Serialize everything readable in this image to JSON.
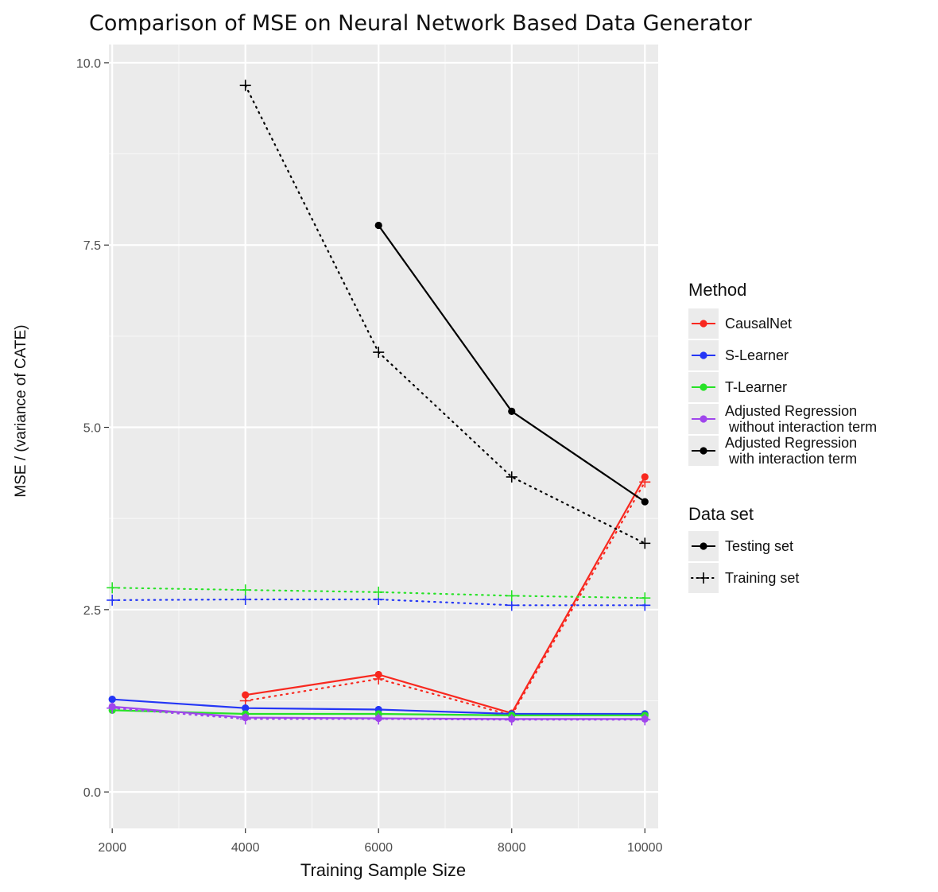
{
  "chart_data": {
    "type": "line",
    "title": "Comparison of MSE on Neural Network Based Data Generator",
    "xlabel": "Training Sample Size",
    "ylabel": "MSE / (variance of CATE)",
    "xlim": [
      1950,
      10200
    ],
    "ylim": [
      -0.5,
      10.25
    ],
    "xticks": [
      2000,
      4000,
      6000,
      8000,
      10000
    ],
    "xtick_labels": [
      "2000",
      "4000",
      "6000",
      "8000",
      "10000"
    ],
    "yticks": [
      0,
      2.5,
      5,
      7.5,
      10
    ],
    "ytick_labels": [
      "0.0",
      "2.5",
      "5.0",
      "7.5",
      "10.0"
    ],
    "grid": true,
    "legend_position": "right",
    "legend": {
      "method_title": "Method",
      "dataset_title": "Data set",
      "methods": [
        {
          "label": "CausalNet",
          "color": "#f8281f"
        },
        {
          "label": "S-Learner",
          "color": "#2436f6"
        },
        {
          "label": "T-Learner",
          "color": "#27e227"
        },
        {
          "label": "Adjusted Regression\n without interaction term",
          "color": "#a046ec"
        },
        {
          "label": "Adjusted Regression\n with interaction term",
          "color": "#000000"
        }
      ],
      "datasets": [
        {
          "label": "Testing set",
          "linestyle": "solid",
          "marker": "point"
        },
        {
          "label": "Training set",
          "linestyle": "dotted",
          "marker": "plus"
        }
      ]
    },
    "series": [
      {
        "name": "CausalNet",
        "dataset": "Testing set",
        "color": "#f8281f",
        "x": [
          4000,
          6000,
          8000,
          10000
        ],
        "y": [
          1.33,
          1.61,
          1.08,
          4.32
        ]
      },
      {
        "name": "CausalNet",
        "dataset": "Training set",
        "color": "#f8281f",
        "x": [
          4000,
          6000,
          8000,
          10000
        ],
        "y": [
          1.25,
          1.55,
          1.05,
          4.25
        ]
      },
      {
        "name": "S-Learner",
        "dataset": "Testing set",
        "color": "#2436f6",
        "x": [
          2000,
          4000,
          6000,
          8000,
          10000
        ],
        "y": [
          1.27,
          1.15,
          1.13,
          1.07,
          1.07
        ]
      },
      {
        "name": "S-Learner",
        "dataset": "Training set",
        "color": "#2436f6",
        "x": [
          2000,
          4000,
          6000,
          8000,
          10000
        ],
        "y": [
          2.63,
          2.64,
          2.64,
          2.56,
          2.56
        ]
      },
      {
        "name": "T-Learner",
        "dataset": "Testing set",
        "color": "#27e227",
        "x": [
          2000,
          4000,
          6000,
          8000,
          10000
        ],
        "y": [
          1.12,
          1.07,
          1.07,
          1.05,
          1.05
        ]
      },
      {
        "name": "T-Learner",
        "dataset": "Training set",
        "color": "#27e227",
        "x": [
          2000,
          4000,
          6000,
          8000,
          10000
        ],
        "y": [
          2.8,
          2.77,
          2.74,
          2.69,
          2.66
        ]
      },
      {
        "name": "Adjusted Regression without interaction term",
        "dataset": "Testing set",
        "color": "#a046ec",
        "x": [
          2000,
          4000,
          6000,
          8000,
          10000
        ],
        "y": [
          1.17,
          1.02,
          1.01,
          1.0,
          1.0
        ]
      },
      {
        "name": "Adjusted Regression without interaction term",
        "dataset": "Training set",
        "color": "#a046ec",
        "x": [
          2000,
          4000,
          6000,
          8000,
          10000
        ],
        "y": [
          1.15,
          1.0,
          1.0,
          0.99,
          0.99
        ]
      },
      {
        "name": "Adjusted Regression with interaction term",
        "dataset": "Testing set",
        "color": "#000000",
        "x": [
          6000,
          8000,
          10000
        ],
        "y": [
          7.77,
          5.22,
          3.98
        ]
      },
      {
        "name": "Adjusted Regression with interaction term",
        "dataset": "Training set",
        "color": "#000000",
        "x": [
          4000,
          6000,
          8000,
          10000
        ],
        "y": [
          9.69,
          6.03,
          4.32,
          3.41
        ]
      }
    ]
  }
}
